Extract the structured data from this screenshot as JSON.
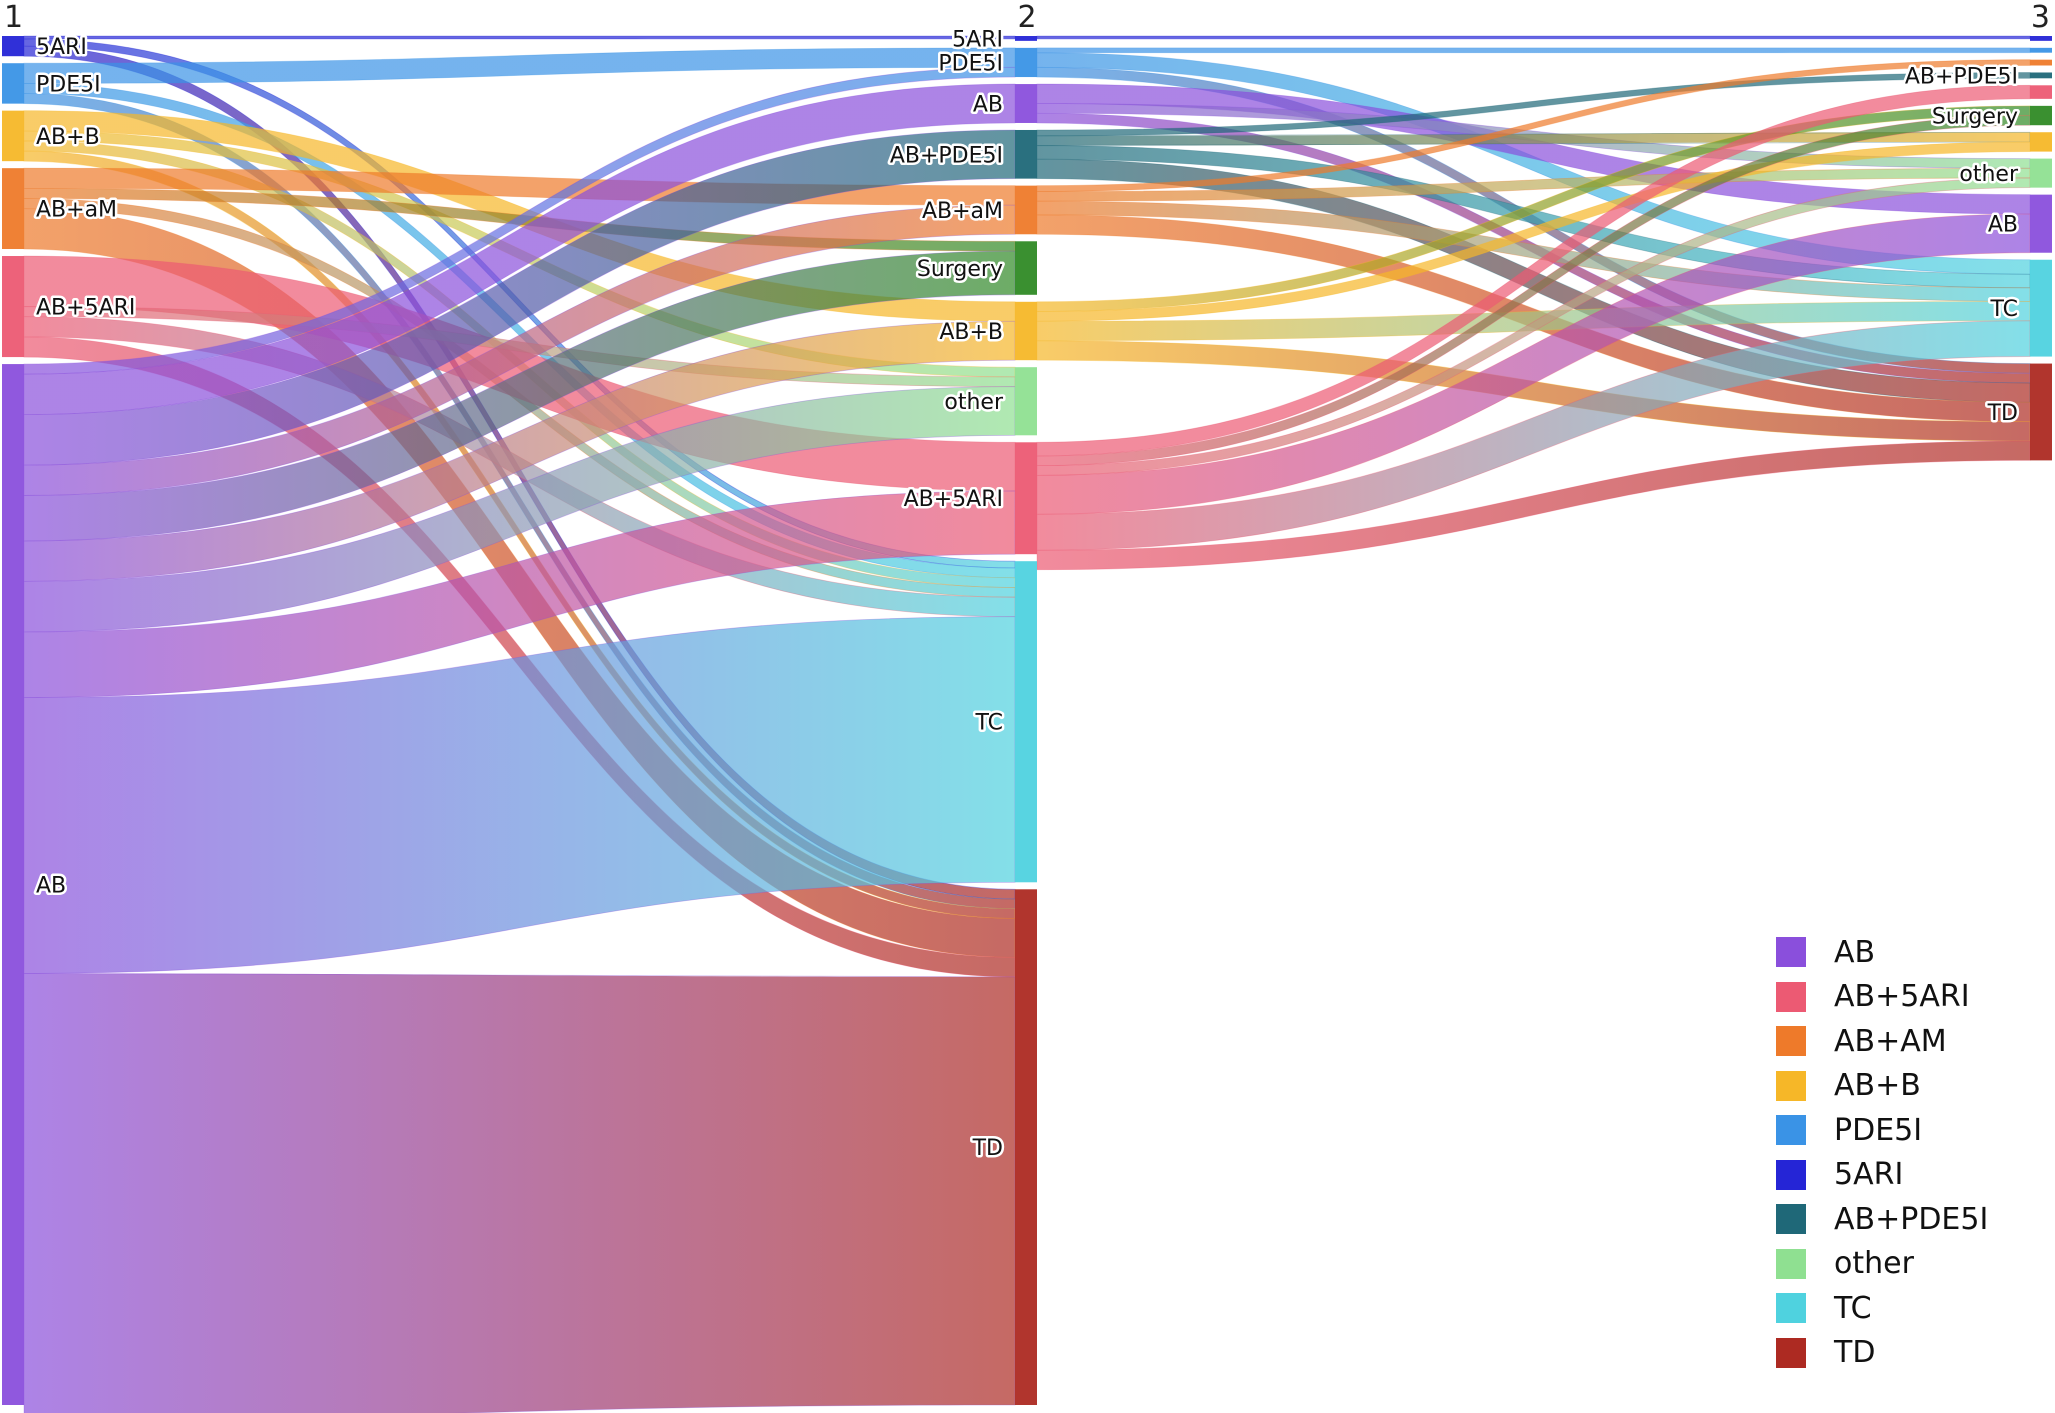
{
  "colors": {
    "AB": "#8a4fdc",
    "AB+5ARI": "#ec5a73",
    "AB+aM": "#ee7a2a",
    "AB+B": "#f6b728",
    "PDE5I": "#3a93e6",
    "5ARI": "#2525d6",
    "AB+PDE5I": "#1f6878",
    "Surgery": "#2f8a25",
    "other": "#8fe091",
    "TC": "#4fd2df",
    "TD": "#ad2a22"
  },
  "stages": [
    "1",
    "2",
    "3"
  ],
  "columns": [
    {
      "stage": "1",
      "nodes": [
        {
          "id": "1-5ARI",
          "label": "5ARI",
          "group": "5ARI",
          "value": 2
        },
        {
          "id": "1-PDE5I",
          "label": "PDE5I",
          "group": "PDE5I",
          "value": 4
        },
        {
          "id": "1-AB+B",
          "label": "AB+B",
          "group": "AB+B",
          "value": 5
        },
        {
          "id": "1-AB+aM",
          "label": "AB+aM",
          "group": "AB+aM",
          "value": 8
        },
        {
          "id": "1-AB+5ARI",
          "label": "AB+5ARI",
          "group": "AB+5ARI",
          "value": 10
        },
        {
          "id": "1-AB",
          "label": "AB",
          "group": "AB",
          "value": 103
        }
      ]
    },
    {
      "stage": "2",
      "nodes": [
        {
          "id": "2-5ARI",
          "label": "5ARI",
          "group": "5ARI",
          "value": 0.5
        },
        {
          "id": "2-PDE5I",
          "label": "PDE5I",
          "group": "PDE5I",
          "value": 3
        },
        {
          "id": "2-AB",
          "label": "AB",
          "group": "AB",
          "value": 4
        },
        {
          "id": "2-AB+PDE5I",
          "label": "AB+PDE5I",
          "group": "AB+PDE5I",
          "value": 5
        },
        {
          "id": "2-AB+aM",
          "label": "AB+aM",
          "group": "AB+aM",
          "value": 5
        },
        {
          "id": "2-Surgery",
          "label": "Surgery",
          "group": "Surgery",
          "value": 5.5
        },
        {
          "id": "2-AB+B",
          "label": "AB+B",
          "group": "AB+B",
          "value": 6
        },
        {
          "id": "2-other",
          "label": "other",
          "group": "other",
          "value": 7
        },
        {
          "id": "2-AB+5ARI",
          "label": "AB+5ARI",
          "group": "AB+5ARI",
          "value": 11.5
        },
        {
          "id": "2-TC",
          "label": "TC",
          "group": "TC",
          "value": 33
        },
        {
          "id": "2-TD",
          "label": "TD",
          "group": "TD",
          "value": 53
        }
      ]
    },
    {
      "stage": "3",
      "nodes": [
        {
          "id": "3-5ARI",
          "label": "",
          "group": "5ARI",
          "value": 0.5
        },
        {
          "id": "3-PDE5I",
          "label": "",
          "group": "PDE5I",
          "value": 0.5
        },
        {
          "id": "3-AB+aM",
          "label": "",
          "group": "AB+aM",
          "value": 0.6
        },
        {
          "id": "3-AB+PDE5I",
          "label": "AB+PDE5I",
          "group": "AB+PDE5I",
          "value": 0.6
        },
        {
          "id": "3-AB+5ARI",
          "label": "",
          "group": "AB+5ARI",
          "value": 1.4
        },
        {
          "id": "3-Surgery",
          "label": "Surgery",
          "group": "Surgery",
          "value": 2
        },
        {
          "id": "3-AB+B",
          "label": "",
          "group": "AB+B",
          "value": 2
        },
        {
          "id": "3-other",
          "label": "other",
          "group": "other",
          "value": 3
        },
        {
          "id": "3-AB",
          "label": "AB",
          "group": "AB",
          "value": 6
        },
        {
          "id": "3-TC",
          "label": "TC",
          "group": "TC",
          "value": 10
        },
        {
          "id": "3-TD",
          "label": "TD",
          "group": "TD",
          "value": 10
        }
      ]
    }
  ],
  "links": [
    {
      "source": "1-5ARI",
      "target": "2-5ARI",
      "value": 0.3
    },
    {
      "source": "1-5ARI",
      "target": "2-TC",
      "value": 0.7
    },
    {
      "source": "1-5ARI",
      "target": "2-TD",
      "value": 1
    },
    {
      "source": "1-PDE5I",
      "target": "2-PDE5I",
      "value": 2
    },
    {
      "source": "1-PDE5I",
      "target": "2-TC",
      "value": 1
    },
    {
      "source": "1-PDE5I",
      "target": "2-TD",
      "value": 1
    },
    {
      "source": "1-AB+B",
      "target": "2-AB+B",
      "value": 2
    },
    {
      "source": "1-AB+B",
      "target": "2-other",
      "value": 1
    },
    {
      "source": "1-AB+B",
      "target": "2-TC",
      "value": 1
    },
    {
      "source": "1-AB+B",
      "target": "2-TD",
      "value": 1
    },
    {
      "source": "1-AB+aM",
      "target": "2-AB+aM",
      "value": 2
    },
    {
      "source": "1-AB+aM",
      "target": "2-Surgery",
      "value": 1
    },
    {
      "source": "1-AB+aM",
      "target": "2-TC",
      "value": 1
    },
    {
      "source": "1-AB+aM",
      "target": "2-TD",
      "value": 4
    },
    {
      "source": "1-AB+5ARI",
      "target": "2-AB+5ARI",
      "value": 5
    },
    {
      "source": "1-AB+5ARI",
      "target": "2-other",
      "value": 1
    },
    {
      "source": "1-AB+5ARI",
      "target": "2-TC",
      "value": 2
    },
    {
      "source": "1-AB+5ARI",
      "target": "2-TD",
      "value": 2
    },
    {
      "source": "1-AB",
      "target": "2-PDE5I",
      "value": 1
    },
    {
      "source": "1-AB",
      "target": "2-AB",
      "value": 4
    },
    {
      "source": "1-AB",
      "target": "2-AB+PDE5I",
      "value": 5
    },
    {
      "source": "1-AB",
      "target": "2-AB+aM",
      "value": 3
    },
    {
      "source": "1-AB",
      "target": "2-Surgery",
      "value": 4.5
    },
    {
      "source": "1-AB",
      "target": "2-AB+B",
      "value": 4
    },
    {
      "source": "1-AB",
      "target": "2-other",
      "value": 5
    },
    {
      "source": "1-AB",
      "target": "2-AB+5ARI",
      "value": 6.5
    },
    {
      "source": "1-AB",
      "target": "2-TC",
      "value": 27.3
    },
    {
      "source": "1-AB",
      "target": "2-TD",
      "value": 44
    },
    {
      "source": "2-5ARI",
      "target": "3-5ARI",
      "value": 0.3
    },
    {
      "source": "2-PDE5I",
      "target": "3-PDE5I",
      "value": 0.5
    },
    {
      "source": "2-PDE5I",
      "target": "3-TC",
      "value": 1.5
    },
    {
      "source": "2-PDE5I",
      "target": "3-TD",
      "value": 1
    },
    {
      "source": "2-AB",
      "target": "3-AB",
      "value": 2
    },
    {
      "source": "2-AB",
      "target": "3-other",
      "value": 1
    },
    {
      "source": "2-AB",
      "target": "3-TD",
      "value": 1
    },
    {
      "source": "2-AB+PDE5I",
      "target": "3-AB+PDE5I",
      "value": 0.6
    },
    {
      "source": "2-AB+PDE5I",
      "target": "3-AB+B",
      "value": 1
    },
    {
      "source": "2-AB+PDE5I",
      "target": "3-TC",
      "value": 1.4
    },
    {
      "source": "2-AB+PDE5I",
      "target": "3-TD",
      "value": 2
    },
    {
      "source": "2-AB+aM",
      "target": "3-AB+aM",
      "value": 0.6
    },
    {
      "source": "2-AB+aM",
      "target": "3-other",
      "value": 1
    },
    {
      "source": "2-AB+aM",
      "target": "3-TC",
      "value": 1.4
    },
    {
      "source": "2-AB+aM",
      "target": "3-TD",
      "value": 2
    },
    {
      "source": "2-AB+B",
      "target": "3-Surgery",
      "value": 1
    },
    {
      "source": "2-AB+B",
      "target": "3-AB+B",
      "value": 1
    },
    {
      "source": "2-AB+B",
      "target": "3-TC",
      "value": 2
    },
    {
      "source": "2-AB+B",
      "target": "3-TD",
      "value": 2
    },
    {
      "source": "2-AB+5ARI",
      "target": "3-AB+5ARI",
      "value": 1.4
    },
    {
      "source": "2-AB+5ARI",
      "target": "3-Surgery",
      "value": 1
    },
    {
      "source": "2-AB+5ARI",
      "target": "3-other",
      "value": 1
    },
    {
      "source": "2-AB+5ARI",
      "target": "3-AB",
      "value": 4
    },
    {
      "source": "2-AB+5ARI",
      "target": "3-TC",
      "value": 3.7
    },
    {
      "source": "2-AB+5ARI",
      "target": "3-TD",
      "value": 2
    }
  ],
  "legend": [
    {
      "label": "AB",
      "group": "AB"
    },
    {
      "label": "AB+5ARI",
      "group": "AB+5ARI"
    },
    {
      "label": "AB+AM",
      "group": "AB+aM"
    },
    {
      "label": "AB+B",
      "group": "AB+B"
    },
    {
      "label": "PDE5I",
      "group": "PDE5I"
    },
    {
      "label": "5ARI",
      "group": "5ARI"
    },
    {
      "label": "AB+PDE5I",
      "group": "AB+PDE5I"
    },
    {
      "label": "other",
      "group": "other"
    },
    {
      "label": "TC",
      "group": "TC"
    },
    {
      "label": "TD",
      "group": "TD"
    }
  ]
}
